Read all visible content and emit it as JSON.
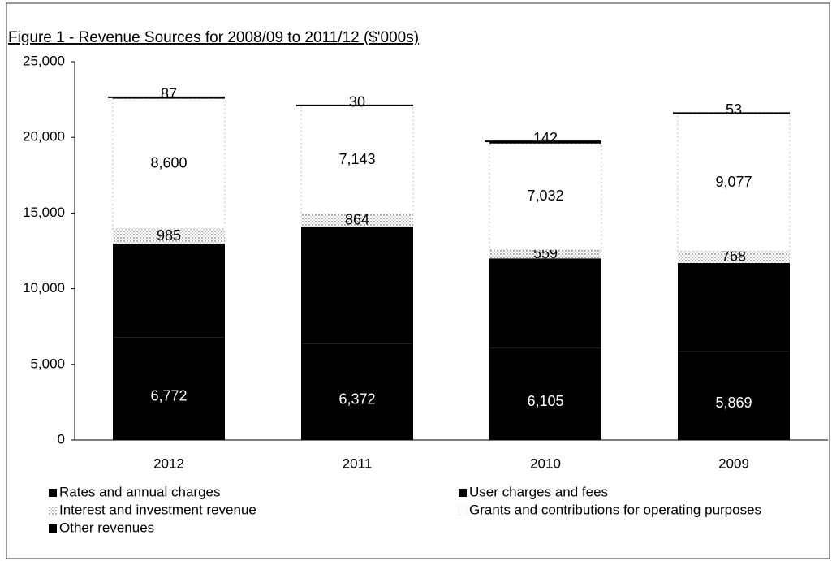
{
  "chart_data": {
    "type": "stacked-bar",
    "title": "Figure 1 - Revenue Sources for 2008/09 to 2011/12 ($'000s)",
    "categories": [
      "2012",
      "2011",
      "2010",
      "2009"
    ],
    "series": [
      {
        "name": "Rates and annual charges",
        "color": "#000000",
        "values": [
          6772,
          6372,
          6105,
          5869
        ],
        "value_labels": [
          "6,772",
          "6,372",
          "6,105",
          "5,869"
        ]
      },
      {
        "name": "User charges and fees",
        "color": "#000000",
        "values": [
          6200,
          7700,
          5900,
          5830
        ]
      },
      {
        "name": "Interest and investment revenue",
        "color": "#d4d4d4",
        "values": [
          985,
          864,
          559,
          768
        ]
      },
      {
        "name": "Grants and contributions for operating purposes",
        "color": "#ffffff",
        "values": [
          8600,
          7143,
          7032,
          9077
        ],
        "value_labels": [
          "8,600",
          "7,143",
          "7,032",
          "9,077"
        ]
      },
      {
        "name": "Other revenues",
        "color": "#000000",
        "values": [
          87,
          30,
          142,
          53
        ]
      }
    ],
    "ylim": [
      0,
      25000
    ],
    "yticks": [
      0,
      {
        "value": 5000,
        "label": "5,000"
      },
      {
        "value": 10000,
        "label": "10,000"
      },
      {
        "value": 15000,
        "label": "15,000"
      },
      {
        "value": 20000,
        "label": "20,000"
      },
      {
        "value": 25000,
        "label": "25,000"
      }
    ],
    "grid": false
  }
}
